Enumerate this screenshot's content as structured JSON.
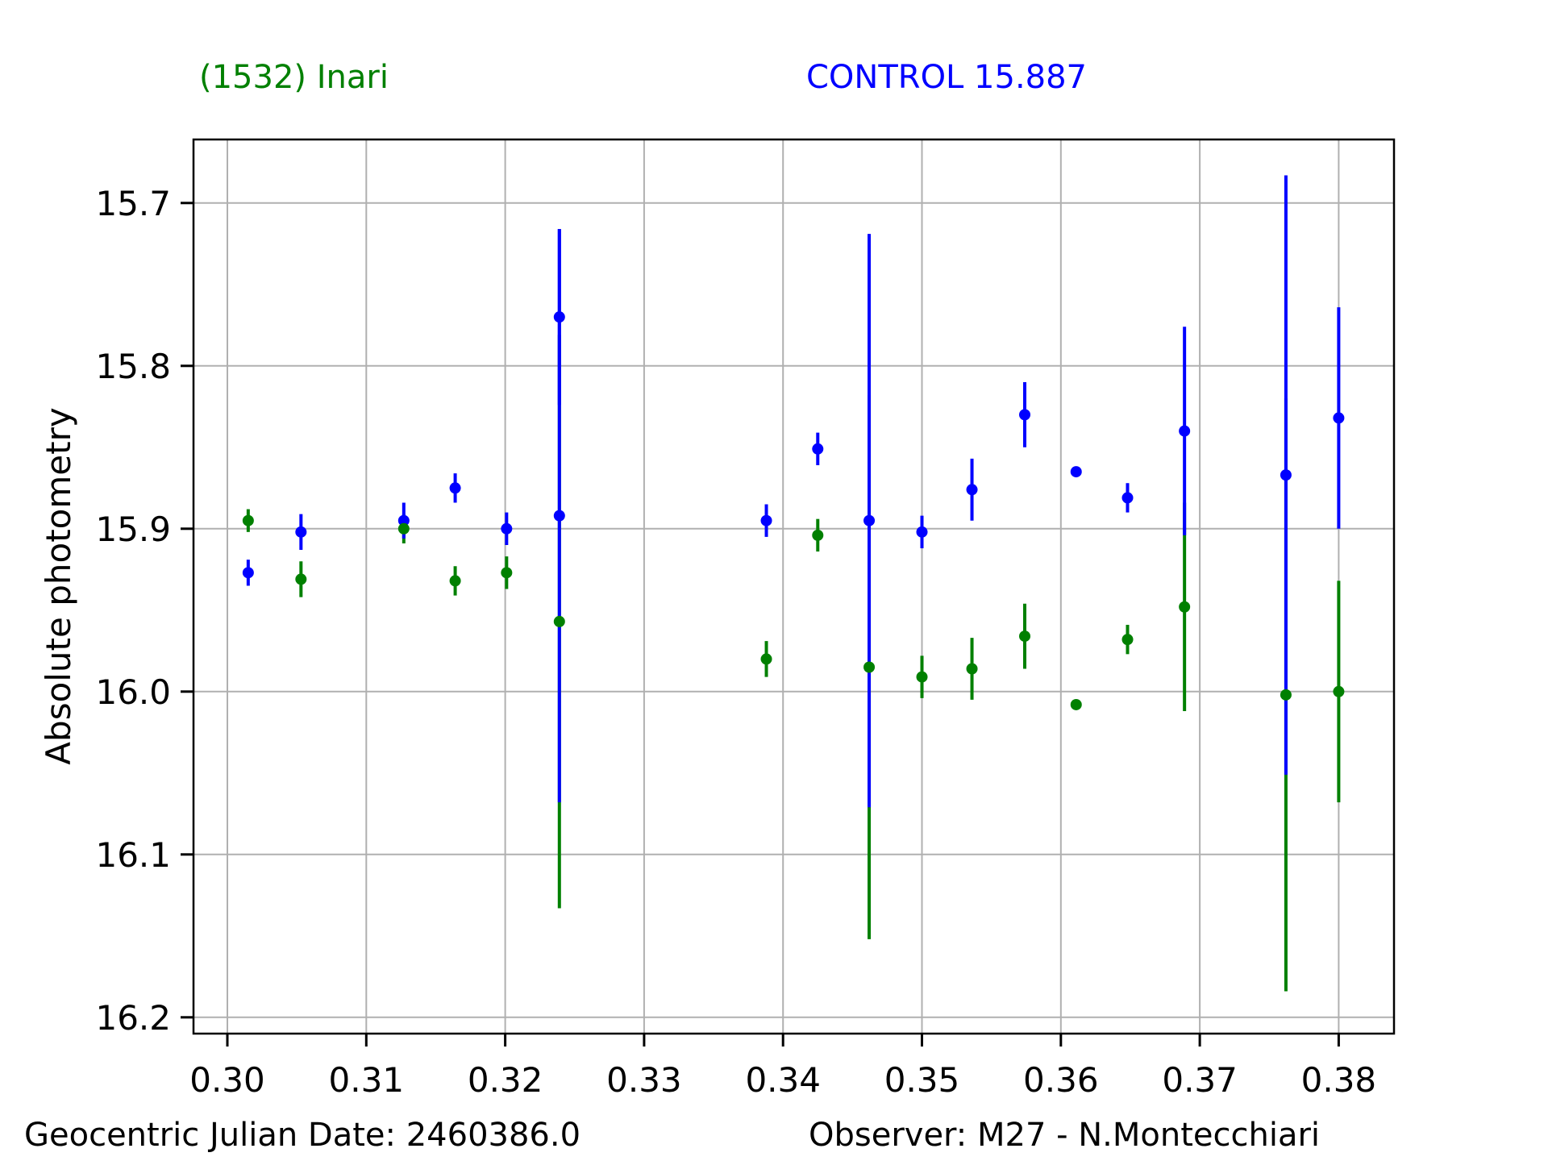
{
  "figure": {
    "title_left": {
      "text": "(1532) Inari",
      "color": "#008000"
    },
    "title_right": {
      "text": "CONTROL 15.887",
      "color": "#0000ff"
    },
    "ylabel": "Absolute photometry",
    "footer": {
      "left": "Geocentric Julian Date: 2460386.0",
      "right": "Observer: M27 - N.Montecchiari"
    }
  },
  "chart_data": {
    "type": "scatter",
    "subtype": "errorbar",
    "ylabel": "Absolute photometry",
    "grid": true,
    "legend": "none",
    "x_axis": {
      "min": 0.297562,
      "max": 0.383981,
      "ticks": [
        {
          "v": 0.3,
          "label": "0.30"
        },
        {
          "v": 0.31,
          "label": "0.31"
        },
        {
          "v": 0.32,
          "label": "0.32"
        },
        {
          "v": 0.33,
          "label": "0.33"
        },
        {
          "v": 0.34,
          "label": "0.34"
        },
        {
          "v": 0.35,
          "label": "0.35"
        },
        {
          "v": 0.36,
          "label": "0.36"
        },
        {
          "v": 0.37,
          "label": "0.37"
        },
        {
          "v": 0.38,
          "label": "0.38"
        }
      ]
    },
    "y_axis": {
      "min": 15.661,
      "max": 16.21,
      "inverted": true,
      "ticks": [
        {
          "v": 15.7,
          "label": "15.7"
        },
        {
          "v": 15.8,
          "label": "15.8"
        },
        {
          "v": 15.9,
          "label": "15.9"
        },
        {
          "v": 16.0,
          "label": "16.0"
        },
        {
          "v": 16.1,
          "label": "16.1"
        },
        {
          "v": 16.2,
          "label": "16.2"
        }
      ]
    },
    "series": [
      {
        "name": "(1532) Inari",
        "color": "#008000",
        "marker": "circle",
        "points": [
          {
            "x": 0.3015,
            "y": 15.895,
            "err": 0.007
          },
          {
            "x": 0.3053,
            "y": 15.931,
            "err": 0.011
          },
          {
            "x": 0.3127,
            "y": 15.9,
            "err": 0.009
          },
          {
            "x": 0.3164,
            "y": 15.932,
            "err": 0.009
          },
          {
            "x": 0.3201,
            "y": 15.927,
            "err": 0.01
          },
          {
            "x": 0.3239,
            "y": 15.957,
            "err": 0.176
          },
          {
            "x": 0.3388,
            "y": 15.98,
            "err": 0.011
          },
          {
            "x": 0.3425,
            "y": 15.904,
            "err": 0.01
          },
          {
            "x": 0.3462,
            "y": 15.985,
            "err": 0.167
          },
          {
            "x": 0.35,
            "y": 15.991,
            "err": 0.013
          },
          {
            "x": 0.3536,
            "y": 15.986,
            "err": 0.019
          },
          {
            "x": 0.3574,
            "y": 15.966,
            "err": 0.02
          },
          {
            "x": 0.3611,
            "y": 16.008,
            "err": 0.002
          },
          {
            "x": 0.3648,
            "y": 15.968,
            "err": 0.009
          },
          {
            "x": 0.3689,
            "y": 15.948,
            "err": 0.064
          },
          {
            "x": 0.3762,
            "y": 16.002,
            "err": 0.182
          },
          {
            "x": 0.38,
            "y": 16.0,
            "err": 0.068
          }
        ]
      },
      {
        "name": "CONTROL",
        "color": "#0000ff",
        "marker": "circle",
        "points": [
          {
            "x": 0.3015,
            "y": 15.927,
            "err": 0.008
          },
          {
            "x": 0.3053,
            "y": 15.902,
            "err": 0.011
          },
          {
            "x": 0.3127,
            "y": 15.895,
            "err": 0.011
          },
          {
            "x": 0.3164,
            "y": 15.875,
            "err": 0.009
          },
          {
            "x": 0.3201,
            "y": 15.9,
            "err": 0.01
          },
          {
            "x": 0.3239,
            "y": 15.77,
            "err": 0.054
          },
          {
            "x": 0.3239,
            "y": 15.892,
            "err": 0.176
          },
          {
            "x": 0.3388,
            "y": 15.895,
            "err": 0.01
          },
          {
            "x": 0.3425,
            "y": 15.851,
            "err": 0.01
          },
          {
            "x": 0.3462,
            "y": 15.895,
            "err": 0.176
          },
          {
            "x": 0.35,
            "y": 15.902,
            "err": 0.01
          },
          {
            "x": 0.3536,
            "y": 15.876,
            "err": 0.019
          },
          {
            "x": 0.3574,
            "y": 15.83,
            "err": 0.02
          },
          {
            "x": 0.3611,
            "y": 15.865,
            "err": 0.002
          },
          {
            "x": 0.3648,
            "y": 15.881,
            "err": 0.009
          },
          {
            "x": 0.3689,
            "y": 15.84,
            "err": 0.064
          },
          {
            "x": 0.3762,
            "y": 15.867,
            "err": 0.184
          },
          {
            "x": 0.38,
            "y": 15.832,
            "err": 0.068
          }
        ]
      }
    ]
  },
  "style": {
    "background": "#ffffff",
    "grid_color": "#b0b0b0",
    "spine_color": "#000000",
    "text_color": "#000000"
  }
}
